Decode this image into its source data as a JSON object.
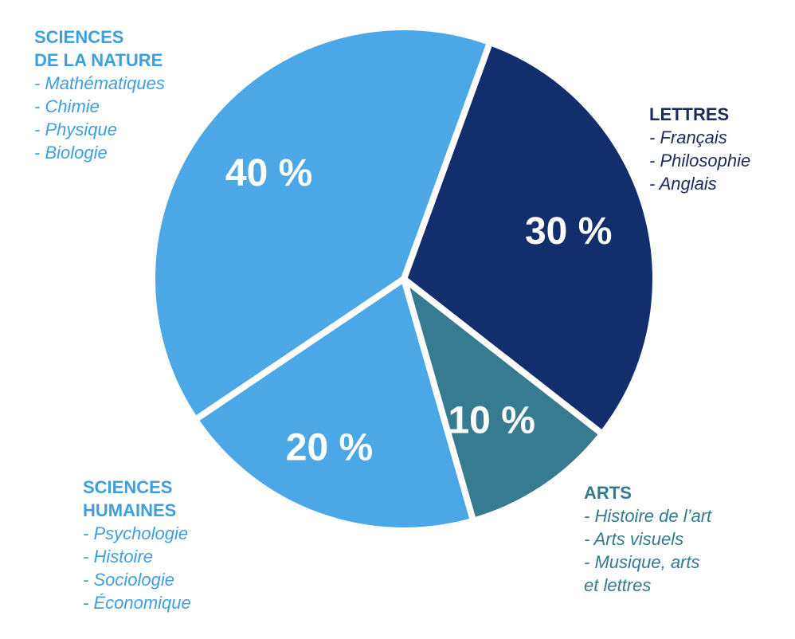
{
  "chart_data": {
    "type": "pie",
    "start_angle_deg": 20,
    "direction": "clockwise",
    "slices": [
      {
        "key": "lettres",
        "value": 30,
        "label": "30 %",
        "color": "#132E6C",
        "title": [
          "LETTRES"
        ],
        "items": [
          "- Français",
          "- Philosophie",
          "- Anglais"
        ],
        "text_color": "#1C2A5C",
        "legend_position": "right"
      },
      {
        "key": "arts",
        "value": 10,
        "label": "10 %",
        "color": "#377B91",
        "title": [
          "ARTS"
        ],
        "items": [
          "- Histoire de l’art",
          "- Arts visuels",
          "- Musique, arts\n  et lettres"
        ],
        "text_color": "#337A8F",
        "legend_position": "bottom-right"
      },
      {
        "key": "sciences-humaines",
        "value": 20,
        "label": "20 %",
        "color": "#4BA7E6",
        "title": [
          "SCIENCES",
          "HUMAINES"
        ],
        "items": [
          "- Psychologie",
          "- Histoire",
          "- Sociologie",
          "- Économique"
        ],
        "text_color": "#3E9FE0",
        "legend_position": "bottom-left"
      },
      {
        "key": "sciences-nature",
        "value": 40,
        "label": "40 %",
        "color": "#4BA7E6",
        "title": [
          "SCIENCES",
          "DE LA NATURE"
        ],
        "items": [
          "- Mathématiques",
          "- Chimie",
          "- Physique",
          "- Biologie"
        ],
        "text_color": "#3E9FE0",
        "legend_position": "top-left"
      }
    ]
  }
}
